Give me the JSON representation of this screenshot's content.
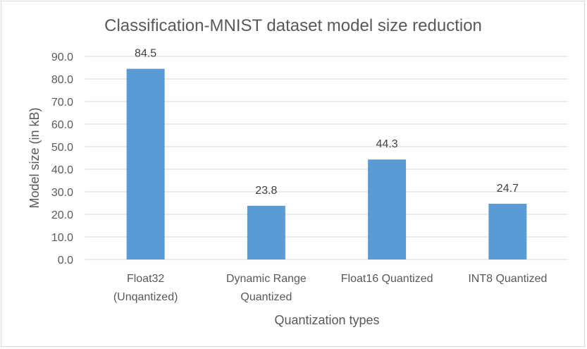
{
  "chart_data": {
    "type": "bar",
    "title": "Classification-MNIST dataset model size reduction",
    "xlabel": "Quantization types",
    "ylabel": "Model size (in kB)",
    "categories": [
      [
        "Float32",
        "(Unqantized)"
      ],
      [
        "Dynamic Range",
        "Quantized"
      ],
      [
        "Float16 Quantized"
      ],
      [
        "INT8 Quantized"
      ]
    ],
    "values": [
      84.5,
      23.8,
      44.3,
      24.7
    ],
    "value_labels": [
      "84.5",
      "23.8",
      "44.3",
      "24.7"
    ],
    "ylim": [
      0,
      90
    ],
    "yticks": [
      "0.0",
      "10.0",
      "20.0",
      "30.0",
      "40.0",
      "50.0",
      "60.0",
      "70.0",
      "80.0",
      "90.0"
    ],
    "ytick_values": [
      0,
      10,
      20,
      30,
      40,
      50,
      60,
      70,
      80,
      90
    ],
    "grid": true,
    "bar_color": "#5b9bd5",
    "grid_color": "#d9d9d9"
  }
}
